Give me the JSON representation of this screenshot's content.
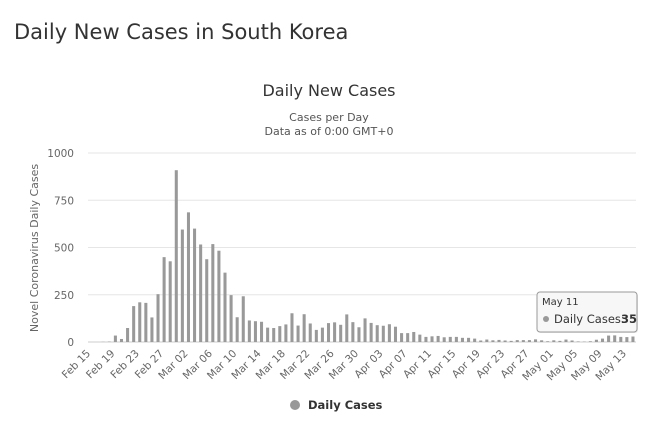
{
  "page": {
    "title": "Daily New Cases in South Korea"
  },
  "chart_data": {
    "type": "bar",
    "title": "Daily New Cases",
    "subtitle_lines": [
      "Cases per Day",
      "Data as of 0:00 GMT+0"
    ],
    "ylabel": "Novel Coronavirus Daily Cases",
    "xlabel": "",
    "ylim": [
      0,
      1000
    ],
    "yticks": [
      0,
      250,
      500,
      750,
      1000
    ],
    "grid": true,
    "legend_position": "bottom-center",
    "categories": [
      "Feb 15",
      "Feb 16",
      "Feb 17",
      "Feb 18",
      "Feb 19",
      "Feb 20",
      "Feb 21",
      "Feb 22",
      "Feb 23",
      "Feb 24",
      "Feb 25",
      "Feb 26",
      "Feb 27",
      "Feb 28",
      "Feb 29",
      "Mar 01",
      "Mar 02",
      "Mar 03",
      "Mar 04",
      "Mar 05",
      "Mar 06",
      "Mar 07",
      "Mar 08",
      "Mar 09",
      "Mar 10",
      "Mar 11",
      "Mar 12",
      "Mar 13",
      "Mar 14",
      "Mar 15",
      "Mar 16",
      "Mar 17",
      "Mar 18",
      "Mar 19",
      "Mar 20",
      "Mar 21",
      "Mar 22",
      "Mar 23",
      "Mar 24",
      "Mar 25",
      "Mar 26",
      "Mar 27",
      "Mar 28",
      "Mar 29",
      "Mar 30",
      "Mar 31",
      "Apr 01",
      "Apr 02",
      "Apr 03",
      "Apr 04",
      "Apr 05",
      "Apr 06",
      "Apr 07",
      "Apr 08",
      "Apr 09",
      "Apr 10",
      "Apr 11",
      "Apr 12",
      "Apr 13",
      "Apr 14",
      "Apr 15",
      "Apr 16",
      "Apr 17",
      "Apr 18",
      "Apr 19",
      "Apr 20",
      "Apr 21",
      "Apr 22",
      "Apr 23",
      "Apr 24",
      "Apr 25",
      "Apr 26",
      "Apr 27",
      "Apr 28",
      "Apr 29",
      "Apr 30",
      "May 01",
      "May 02",
      "May 03",
      "May 04",
      "May 05",
      "May 06",
      "May 07",
      "May 08",
      "May 09",
      "May 10",
      "May 11",
      "May 12",
      "May 13",
      "May 14"
    ],
    "x_tick_labels": [
      "Feb 15",
      "Feb 19",
      "Feb 23",
      "Feb 27",
      "Mar 02",
      "Mar 06",
      "Mar 10",
      "Mar 14",
      "Mar 18",
      "Mar 22",
      "Mar 26",
      "Mar 30",
      "Apr 03",
      "Apr 07",
      "Apr 11",
      "Apr 15",
      "Apr 19",
      "Apr 23",
      "Apr 27",
      "May 01",
      "May 05",
      "May 09",
      "May 13"
    ],
    "series": [
      {
        "name": "Daily Cases",
        "color": "#999999",
        "values": [
          0,
          0,
          1,
          2,
          34,
          16,
          74,
          190,
          210,
          207,
          130,
          253,
          449,
          427,
          909,
          595,
          686,
          600,
          516,
          438,
          518,
          483,
          367,
          248,
          131,
          242,
          114,
          110,
          107,
          76,
          74,
          84,
          93,
          152,
          87,
          147,
          98,
          64,
          76,
          100,
          104,
          91,
          146,
          105,
          78,
          125,
          101,
          89,
          86,
          94,
          81,
          47,
          47,
          53,
          39,
          27,
          30,
          32,
          25,
          27,
          27,
          22,
          22,
          18,
          8,
          13,
          9,
          11,
          8,
          6,
          10,
          10,
          10,
          14,
          9,
          4,
          9,
          6,
          13,
          8,
          3,
          2,
          4,
          12,
          18,
          34,
          35,
          27,
          26,
          29
        ]
      }
    ],
    "tooltip": {
      "date": "May 11",
      "series_label": "Daily Cases",
      "value": 35
    }
  }
}
